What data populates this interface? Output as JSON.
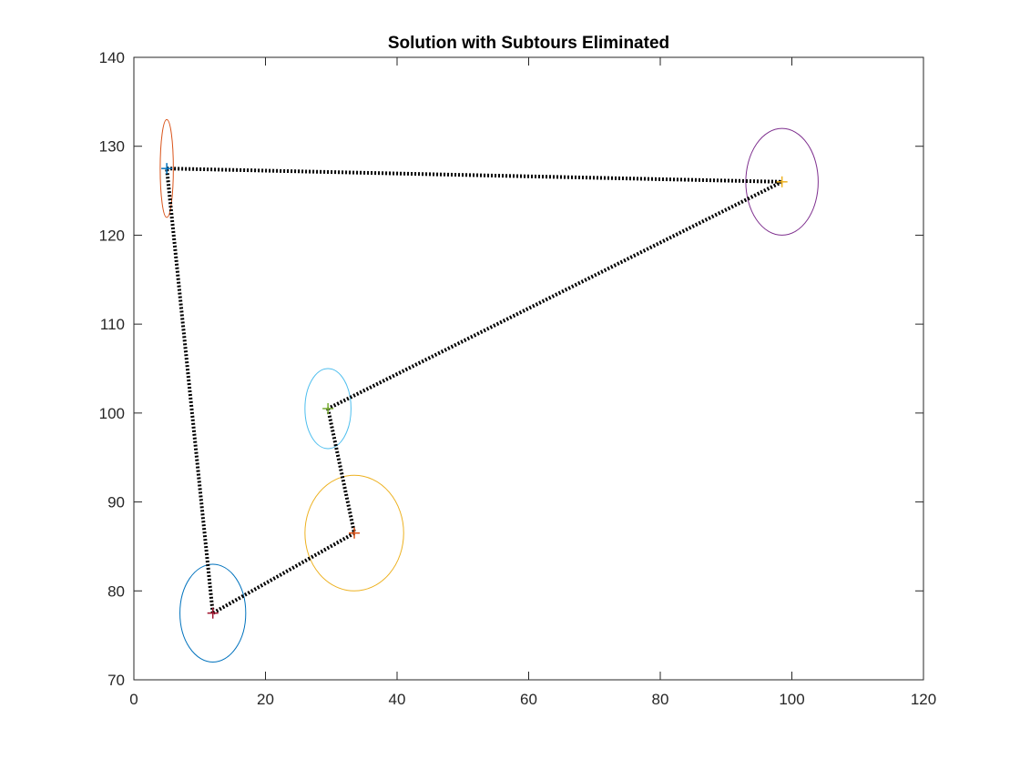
{
  "chart_data": {
    "type": "scatter",
    "title": "Solution with Subtours Eliminated",
    "xlabel": "",
    "ylabel": "",
    "xlim": [
      0,
      120
    ],
    "ylim": [
      70,
      140
    ],
    "xticks": [
      0,
      20,
      40,
      60,
      80,
      100,
      120
    ],
    "yticks": [
      70,
      80,
      90,
      100,
      110,
      120,
      130,
      140
    ],
    "grid": false,
    "legend": "none",
    "points": [
      {
        "x": 5.0,
        "y": 127.5,
        "color": "#0072BD"
      },
      {
        "x": 98.5,
        "y": 126.0,
        "color": "#EDB120"
      },
      {
        "x": 29.5,
        "y": 100.5,
        "color": "#77AC30"
      },
      {
        "x": 33.5,
        "y": 86.5,
        "color": "#D95319"
      },
      {
        "x": 12.0,
        "y": 77.5,
        "color": "#A2142F"
      }
    ],
    "circles": [
      {
        "cx": 12.0,
        "cy": 77.5,
        "rx": 5.0,
        "ry": 5.5,
        "color": "#0072BD"
      },
      {
        "cx": 5.0,
        "cy": 127.5,
        "rx": 1.0,
        "ry": 5.5,
        "color": "#D95319"
      },
      {
        "cx": 33.5,
        "cy": 86.5,
        "rx": 7.5,
        "ry": 6.5,
        "color": "#EDB120"
      },
      {
        "cx": 98.5,
        "cy": 126.0,
        "rx": 5.5,
        "ry": 6.0,
        "color": "#7E2F8E"
      },
      {
        "cx": 29.5,
        "cy": 100.5,
        "rx": 3.5,
        "ry": 4.5,
        "color": "#4DBEEE"
      }
    ],
    "tour": {
      "x": [
        5.0,
        98.5,
        29.5,
        33.5,
        12.0,
        5.0
      ],
      "y": [
        127.5,
        126.0,
        100.5,
        86.5,
        77.5,
        127.5
      ],
      "color": "#000000",
      "style": "dotted"
    }
  }
}
